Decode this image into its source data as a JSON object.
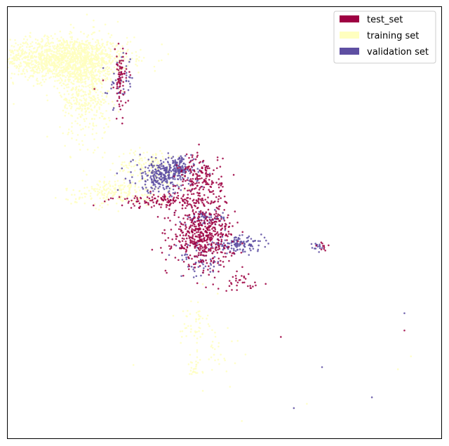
{
  "chart_data": {
    "type": "scatter",
    "title": "",
    "xlabel": "",
    "ylabel": "",
    "grid": false,
    "axis_ticks": false,
    "xlim": [
      0,
      100
    ],
    "ylim": [
      0,
      100
    ],
    "legend": {
      "placement": "top-right"
    },
    "series": [
      {
        "name": "test_set",
        "color": "#9e0142",
        "point_size": 1.3,
        "regions": [
          {
            "center": [
              45,
              47
            ],
            "spread": [
              3.5,
              3.5
            ],
            "count": 520
          },
          {
            "center": [
              44.5,
              60
            ],
            "spread": [
              2.5,
              3.0
            ],
            "count": 180
          },
          {
            "center": [
              37,
              55
            ],
            "spread": [
              6.5,
              0.8
            ],
            "count": 150
          },
          {
            "center": [
              26,
              83
            ],
            "spread": [
              0.7,
              3.5
            ],
            "count": 80
          },
          {
            "center": [
              54,
              36
            ],
            "spread": [
              2,
              1
            ],
            "count": 30
          },
          {
            "center": [
              73,
              44.5
            ],
            "spread": [
              0.6,
              0.6
            ],
            "count": 10
          }
        ],
        "points": [
          [
            59.5,
            35.8
          ],
          [
            91.5,
            25
          ],
          [
            63,
            23.5
          ],
          [
            20,
            81
          ],
          [
            22,
            83
          ]
        ]
      },
      {
        "name": "training set",
        "color": "#ffffbf",
        "point_size": 1.3,
        "regions": [
          {
            "center": [
              13,
              88
            ],
            "spread": [
              7.5,
              2.5
            ],
            "count": 1400
          },
          {
            "center": [
              18,
              81
            ],
            "spread": [
              3,
              6
            ],
            "count": 500
          },
          {
            "center": [
              25,
              57
            ],
            "spread": [
              6,
              1.5
            ],
            "count": 220
          },
          {
            "center": [
              33,
              63
            ],
            "spread": [
              4,
              2
            ],
            "count": 160
          },
          {
            "center": [
              43,
              27
            ],
            "spread": [
              1.5,
              3
            ],
            "count": 50
          },
          {
            "center": [
              43,
              16
            ],
            "spread": [
              1,
              1
            ],
            "count": 25
          },
          {
            "center": [
              48,
              20
            ],
            "spread": [
              3,
              5
            ],
            "count": 30
          }
        ],
        "points": [
          [
            29,
            17
          ],
          [
            90,
            16
          ],
          [
            93,
            19
          ],
          [
            54,
            4
          ],
          [
            17.5,
            62
          ],
          [
            32,
            54
          ],
          [
            69,
            8
          ],
          [
            45,
            11
          ]
        ]
      },
      {
        "name": "validation set",
        "color": "#5e4fa2",
        "point_size": 1.3,
        "regions": [
          {
            "center": [
              36,
              61
            ],
            "spread": [
              3.5,
              2
            ],
            "count": 300
          },
          {
            "center": [
              40,
              63
            ],
            "spread": [
              1.2,
              1.2
            ],
            "count": 70
          },
          {
            "center": [
              53,
              45
            ],
            "spread": [
              3,
              0.8
            ],
            "count": 120
          },
          {
            "center": [
              46,
              51
            ],
            "spread": [
              2.5,
              0.8
            ],
            "count": 60
          },
          {
            "center": [
              44,
              41
            ],
            "spread": [
              3,
              2
            ],
            "count": 60
          },
          {
            "center": [
              26,
              83
            ],
            "spread": [
              1.5,
              3
            ],
            "count": 40
          },
          {
            "center": [
              71.5,
              44.5
            ],
            "spread": [
              0.8,
              0.5
            ],
            "count": 15
          }
        ],
        "points": [
          [
            66,
            7
          ],
          [
            72.5,
            16.5
          ],
          [
            84,
            9.5
          ],
          [
            91.5,
            29
          ],
          [
            45,
            64
          ],
          [
            40,
            64
          ],
          [
            46,
            63
          ],
          [
            24,
            82
          ]
        ]
      }
    ]
  }
}
